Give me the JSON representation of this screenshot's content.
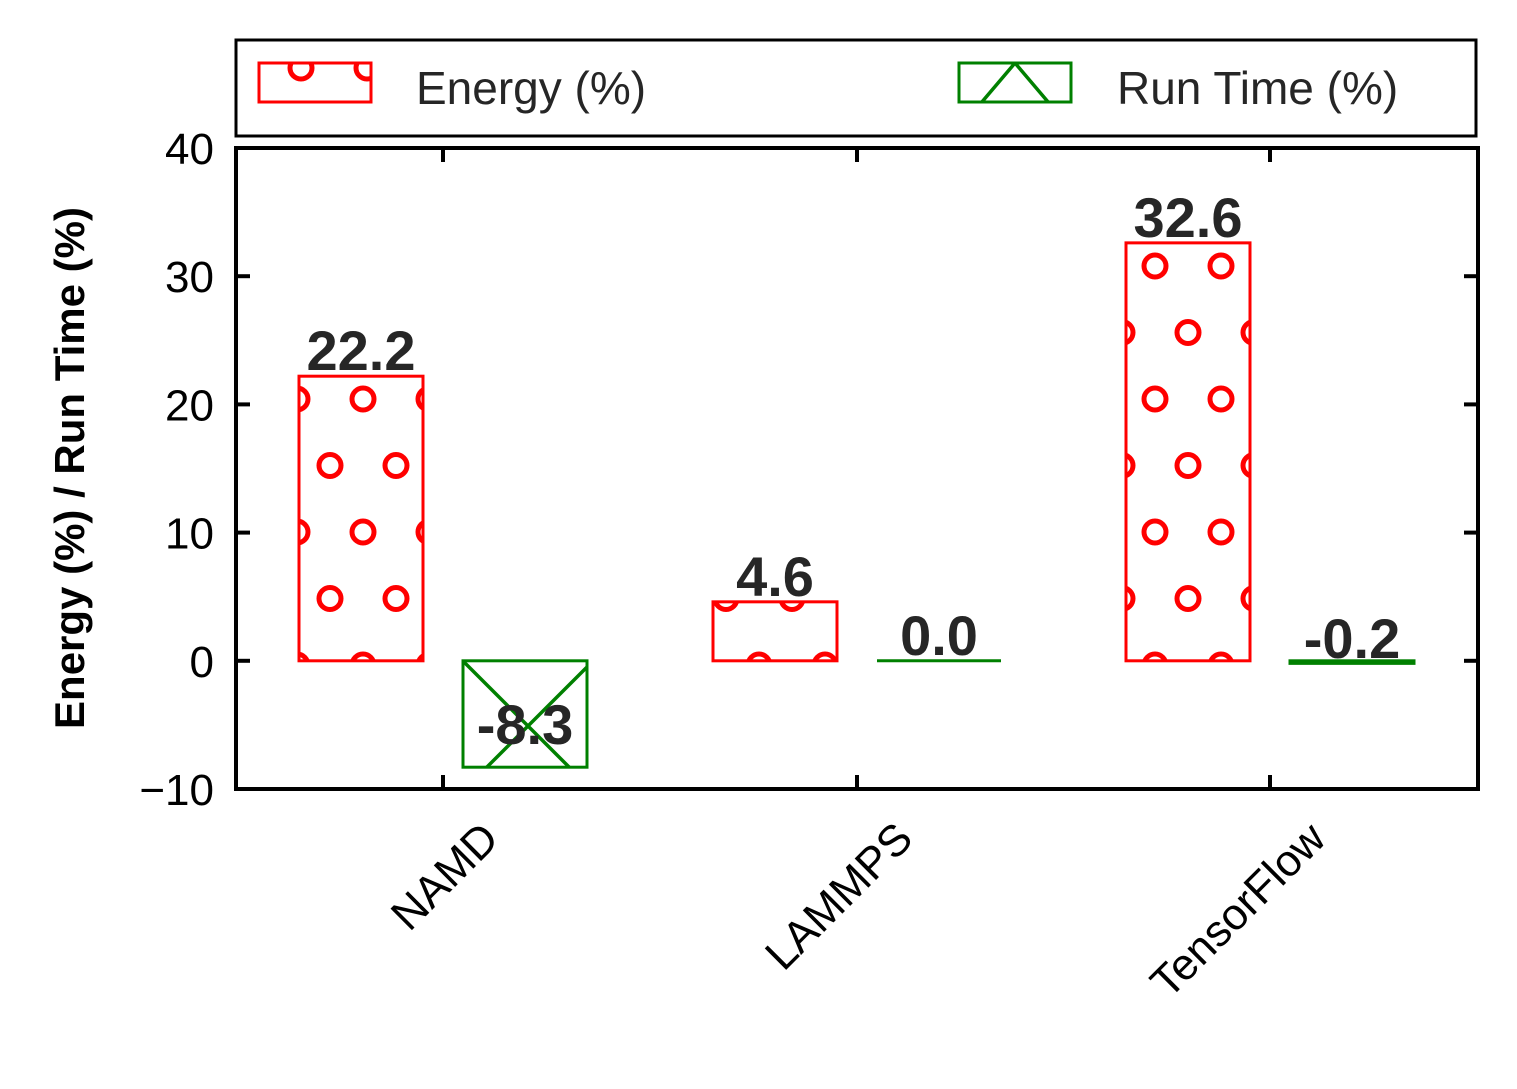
{
  "chart_data": {
    "type": "bar",
    "title": "",
    "xlabel": "",
    "ylabel": "Energy (%) / Run Time (%)",
    "categories": [
      "NAMD",
      "LAMMPS",
      "TensorFlow"
    ],
    "series": [
      {
        "name": "Energy (%)",
        "values": [
          22.2,
          4.6,
          32.6
        ],
        "color": "#ff0000",
        "hatch": "circles"
      },
      {
        "name": "Run Time (%)",
        "values": [
          -8.3,
          0.0,
          -0.2
        ],
        "color": "#008000",
        "hatch": "diagonal-cross"
      }
    ],
    "data_labels": [
      [
        "22.2",
        "4.6",
        "32.6"
      ],
      [
        "-8.3",
        "0.0",
        "-0.2"
      ]
    ],
    "ylim": [
      -10,
      40
    ],
    "yticks": [
      -10,
      0,
      10,
      20,
      30,
      40
    ],
    "ytick_labels": [
      "−10",
      "0",
      "10",
      "20",
      "30",
      "40"
    ],
    "grid": false,
    "legend_position": "top, outside plot, two columns"
  }
}
